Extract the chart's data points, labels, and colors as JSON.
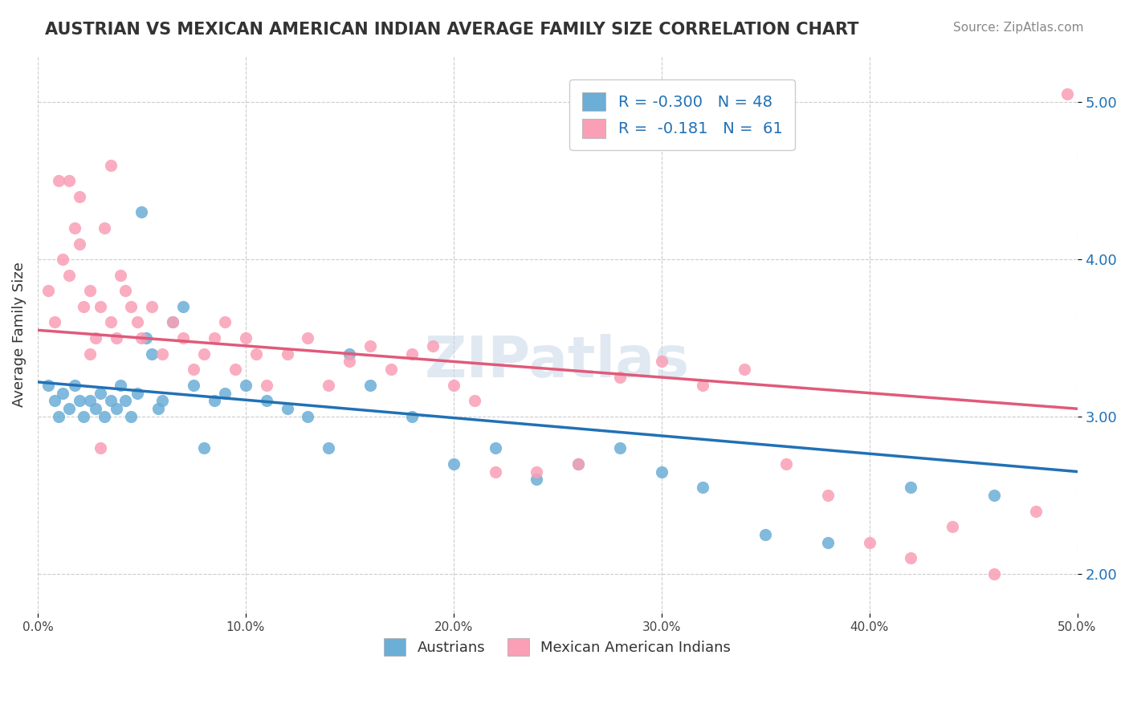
{
  "title": "AUSTRIAN VS MEXICAN AMERICAN INDIAN AVERAGE FAMILY SIZE CORRELATION CHART",
  "source": "Source: ZipAtlas.com",
  "ylabel": "Average Family Size",
  "xlim": [
    0.0,
    50.0
  ],
  "ylim": [
    1.75,
    5.3
  ],
  "yticks": [
    2.0,
    3.0,
    4.0,
    5.0
  ],
  "xticks": [
    0.0,
    10.0,
    20.0,
    30.0,
    40.0,
    50.0
  ],
  "blue_color": "#6baed6",
  "pink_color": "#fa9fb5",
  "blue_line_color": "#2171b5",
  "pink_line_color": "#e05a7a",
  "legend_text_color": "#2171b5",
  "R_blue": -0.3,
  "N_blue": 48,
  "R_pink": -0.181,
  "N_pink": 61,
  "blue_line_x0": 0,
  "blue_line_x1": 50,
  "blue_line_y0": 3.22,
  "blue_line_y1": 2.65,
  "pink_line_x0": 0,
  "pink_line_x1": 50,
  "pink_line_y0": 3.55,
  "pink_line_y1": 3.05,
  "blue_scatter_x": [
    0.5,
    0.8,
    1.0,
    1.2,
    1.5,
    1.8,
    2.0,
    2.2,
    2.5,
    2.8,
    3.0,
    3.2,
    3.5,
    3.8,
    4.0,
    4.2,
    4.5,
    4.8,
    5.0,
    5.2,
    5.5,
    5.8,
    6.0,
    6.5,
    7.0,
    7.5,
    8.0,
    8.5,
    9.0,
    10.0,
    11.0,
    12.0,
    13.0,
    14.0,
    15.0,
    16.0,
    18.0,
    20.0,
    22.0,
    24.0,
    26.0,
    28.0,
    30.0,
    32.0,
    35.0,
    38.0,
    42.0,
    46.0
  ],
  "blue_scatter_y": [
    3.2,
    3.1,
    3.0,
    3.15,
    3.05,
    3.2,
    3.1,
    3.0,
    3.1,
    3.05,
    3.15,
    3.0,
    3.1,
    3.05,
    3.2,
    3.1,
    3.0,
    3.15,
    4.3,
    3.5,
    3.4,
    3.05,
    3.1,
    3.6,
    3.7,
    3.2,
    2.8,
    3.1,
    3.15,
    3.2,
    3.1,
    3.05,
    3.0,
    2.8,
    3.4,
    3.2,
    3.0,
    2.7,
    2.8,
    2.6,
    2.7,
    2.8,
    2.65,
    2.55,
    2.25,
    2.2,
    2.55,
    2.5
  ],
  "pink_scatter_x": [
    0.5,
    0.8,
    1.0,
    1.2,
    1.5,
    1.8,
    2.0,
    2.2,
    2.5,
    2.8,
    3.0,
    3.2,
    3.5,
    3.8,
    4.0,
    4.2,
    4.5,
    4.8,
    5.0,
    5.5,
    6.0,
    6.5,
    7.0,
    7.5,
    8.0,
    8.5,
    9.0,
    9.5,
    10.0,
    10.5,
    11.0,
    12.0,
    13.0,
    14.0,
    15.0,
    16.0,
    17.0,
    18.0,
    19.0,
    20.0,
    21.0,
    22.0,
    24.0,
    26.0,
    28.0,
    30.0,
    32.0,
    34.0,
    36.0,
    38.0,
    40.0,
    42.0,
    44.0,
    46.0,
    48.0,
    49.5,
    1.5,
    2.0,
    2.5,
    3.0,
    3.5
  ],
  "pink_scatter_y": [
    3.8,
    3.6,
    4.5,
    4.0,
    4.5,
    4.2,
    4.1,
    3.7,
    3.8,
    3.5,
    3.7,
    4.2,
    3.6,
    3.5,
    3.9,
    3.8,
    3.7,
    3.6,
    3.5,
    3.7,
    3.4,
    3.6,
    3.5,
    3.3,
    3.4,
    3.5,
    3.6,
    3.3,
    3.5,
    3.4,
    3.2,
    3.4,
    3.5,
    3.2,
    3.35,
    3.45,
    3.3,
    3.4,
    3.45,
    3.2,
    3.1,
    2.65,
    2.65,
    2.7,
    3.25,
    3.35,
    3.2,
    3.3,
    2.7,
    2.5,
    2.2,
    2.1,
    2.3,
    2.0,
    2.4,
    5.05,
    3.9,
    4.4,
    3.4,
    2.8,
    4.6
  ],
  "watermark": "ZIPatlas",
  "bottom_labels": [
    "Austrians",
    "Mexican American Indians"
  ]
}
